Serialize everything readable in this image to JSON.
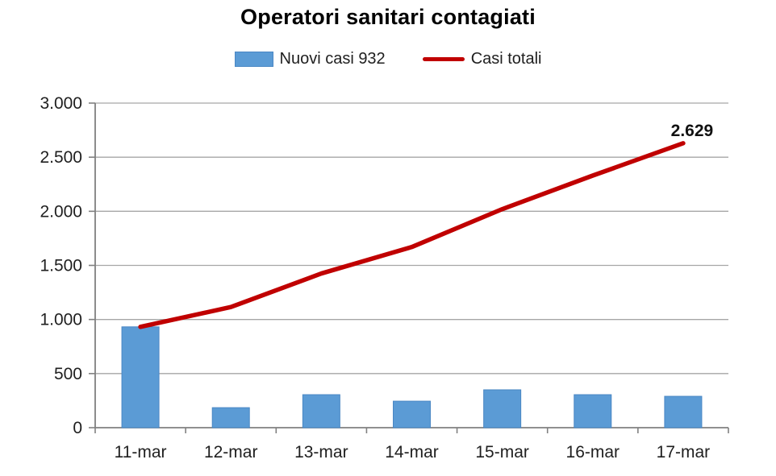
{
  "title": "Operatori sanitari contagiati",
  "legend": {
    "items": [
      {
        "label": "Nuovi casi 932",
        "marker": "bar-swatch"
      },
      {
        "label": "Casi totali",
        "marker": "line-swatch"
      }
    ]
  },
  "colors": {
    "bar_fill": "#5B9BD5",
    "bar_border": "#4A87C4",
    "line": "#C00000",
    "gridline": "#A6A6A6",
    "axis": "#808080",
    "label_text": "#1f1f1f",
    "annotation_text": "#111111",
    "background": "#FFFFFF"
  },
  "chart_data": {
    "type": "bar",
    "combo": "bar+line",
    "title": "Operatori sanitari contagiati",
    "categories": [
      "11-mar",
      "12-mar",
      "13-mar",
      "14-mar",
      "15-mar",
      "16-mar",
      "17-mar"
    ],
    "series": [
      {
        "name": "Nuovi casi 932",
        "type": "bar",
        "color": "#5B9BD5",
        "values": [
          932,
          185,
          305,
          245,
          350,
          305,
          290
        ]
      },
      {
        "name": "Casi totali",
        "type": "line",
        "color": "#C00000",
        "values": [
          932,
          1115,
          1425,
          1670,
          2020,
          2330,
          2629
        ]
      }
    ],
    "xlabel": "",
    "ylabel": "",
    "ylim": [
      0,
      3000
    ],
    "ytick_step": 500,
    "ytick_labels": [
      "0",
      "500",
      "1.000",
      "1.500",
      "2.000",
      "2.500",
      "3.000"
    ],
    "grid": true,
    "legend_position": "top",
    "annotation": {
      "text": "2.629",
      "series_index": 1,
      "category_index": 6
    }
  }
}
